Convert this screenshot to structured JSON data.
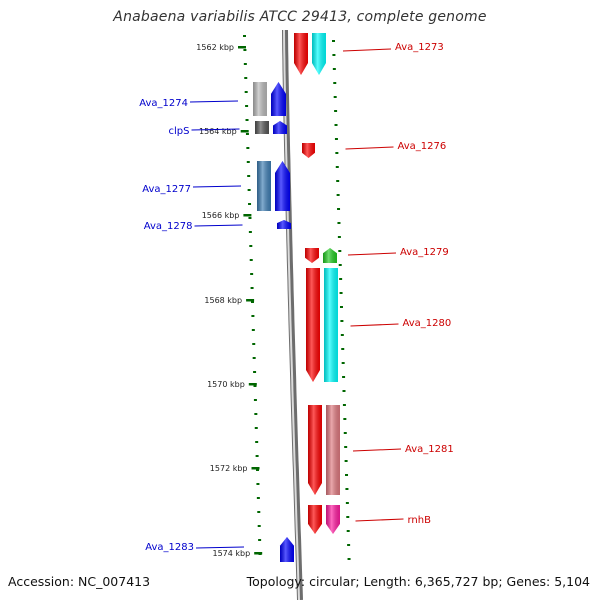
{
  "title": "Anabaena variabilis ATCC 29413, complete genome",
  "accession": "Accession: NC_007413",
  "topology": "Topology: circular; Length: 6,365,727 bp; Genes: 5,104",
  "colors": {
    "forward_label": "#cc0000",
    "reverse_label": "#0000cc",
    "tick": "#006600",
    "backbone": "#888888"
  },
  "kbp_ticks": [
    "1562 kbp",
    "1564 kbp",
    "1566 kbp",
    "1568 kbp",
    "1570 kbp",
    "1572 kbp",
    "1574 kbp"
  ],
  "forward_genes": [
    {
      "label": "Ava_1273",
      "color": "#ff0000",
      "track2": "#00ffff"
    },
    {
      "label": "Ava_1276",
      "color": "#ff0000",
      "track2": null
    },
    {
      "label": "Ava_1279",
      "color": "#ff0000",
      "track2": "#22cc22"
    },
    {
      "label": "Ava_1280",
      "color": "#ff0000",
      "track2": "#00ffff"
    },
    {
      "label": "Ava_1281",
      "color": "#ff0000",
      "track2": "#e07a80"
    },
    {
      "label": "rnhB",
      "color": "#ff0000",
      "track2": "#ff1aa0"
    }
  ],
  "reverse_genes": [
    {
      "label": "Ava_1274",
      "color": "#0000ff",
      "track2": "#bbbbbb"
    },
    {
      "label": "clpS",
      "color": "#0000ff",
      "track2": "#555555"
    },
    {
      "label": "Ava_1277",
      "color": "#0000ff",
      "track2": "#3f7fb5"
    },
    {
      "label": "Ava_1278",
      "color": "#0000ff",
      "track2": null
    },
    {
      "label": "Ava_1283",
      "color": "#0000ff",
      "track2": null
    }
  ]
}
